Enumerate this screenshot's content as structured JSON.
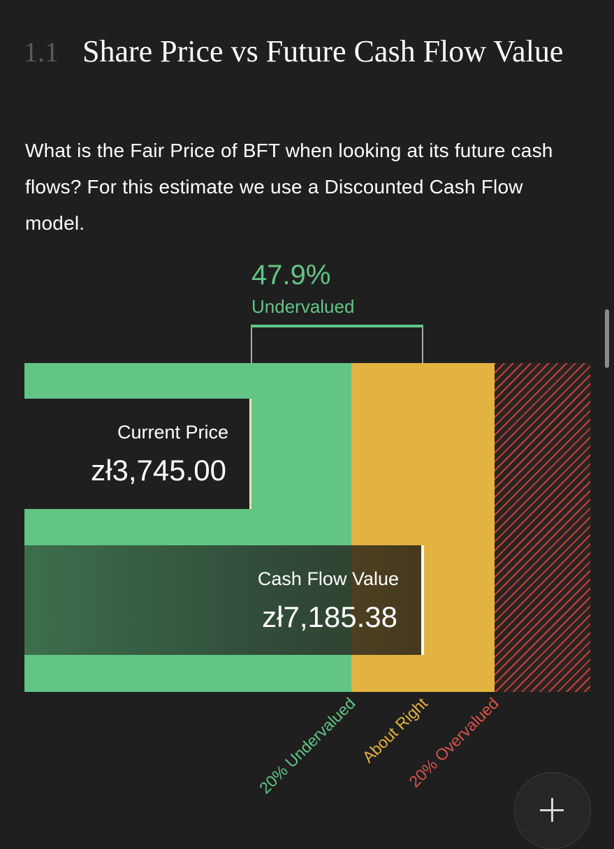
{
  "section": {
    "number": "1.1",
    "title": "Share Price vs Future Cash Flow Value",
    "description": "What is the Fair Price of BFT when looking at its future cash flows? For this estimate we use a Discounted Cash Flow model."
  },
  "valuation": {
    "percent": "47.9%",
    "status": "Undervalued",
    "current_price_label": "Current Price",
    "current_price": "zł3,745.00",
    "cash_flow_label": "Cash Flow Value",
    "cash_flow_value": "zł7,185.38"
  },
  "zones": {
    "undervalued": "20% Undervalued",
    "about_right": "About Right",
    "overvalued": "20% Overvalued"
  },
  "colors": {
    "undervalued": "#62c585",
    "about_right": "#e3b341",
    "overvalued": "#c0433c",
    "background": "#1f1f1f"
  },
  "fab": {
    "icon": "plus-icon"
  }
}
